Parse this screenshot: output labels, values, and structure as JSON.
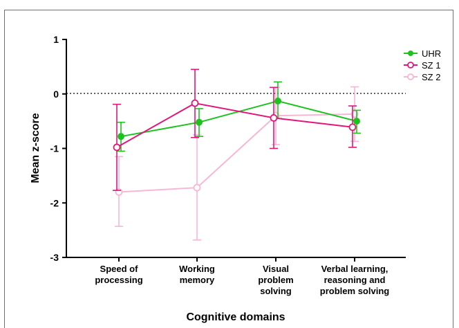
{
  "chart_data": {
    "type": "line",
    "xlabel": "Cognitive domains",
    "ylabel": "Mean z-score",
    "ylim": [
      -3,
      1
    ],
    "yticks": [
      "1",
      "0",
      "-1",
      "-2",
      "-3"
    ],
    "categories": [
      [
        "Speed of",
        "processing"
      ],
      [
        "Working",
        "memory"
      ],
      [
        "Visual",
        "problem",
        "solving"
      ],
      [
        "Verbal learning,",
        "reasoning and",
        "problem solving"
      ]
    ],
    "reference_line": 0,
    "legend_position": "top-right",
    "series": [
      {
        "name": "UHR",
        "color": "#1ec21e",
        "marker": "filled-circle",
        "values": [
          -0.78,
          -0.52,
          -0.13,
          -0.5
        ],
        "error_low": [
          -1.05,
          -0.78,
          -0.45,
          -0.72
        ],
        "error_high": [
          -0.52,
          -0.27,
          0.22,
          -0.3
        ]
      },
      {
        "name": "SZ 1",
        "color": "#e0167a",
        "marker": "open-circle",
        "values": [
          -0.98,
          -0.17,
          -0.44,
          -0.61
        ],
        "error_low": [
          -1.77,
          -0.8,
          -1.0,
          -0.98
        ],
        "error_high": [
          -0.19,
          0.45,
          0.12,
          -0.22
        ]
      },
      {
        "name": "SZ 2",
        "color": "#f7b6d5",
        "marker": "open-circle",
        "values": [
          -1.8,
          -1.72,
          -0.4,
          -0.37
        ],
        "error_low": [
          -2.43,
          -2.68,
          -0.93,
          -0.87
        ],
        "error_high": [
          -1.15,
          -0.75,
          0.12,
          0.13
        ]
      }
    ]
  }
}
